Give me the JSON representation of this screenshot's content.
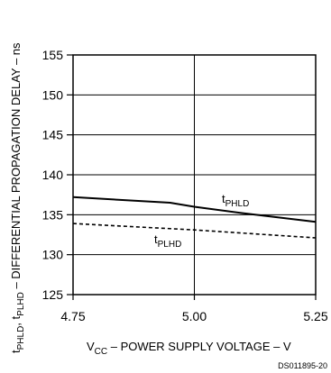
{
  "chart_data": {
    "type": "line",
    "x_ticks": [
      "4.75",
      "5.00",
      "5.25"
    ],
    "y_ticks": [
      "125",
      "130",
      "135",
      "140",
      "145",
      "150",
      "155"
    ],
    "xlim": [
      4.75,
      5.25
    ],
    "ylim": [
      125,
      155
    ],
    "grid": true,
    "xlabel": {
      "pre": "V",
      "sub": "CC",
      "post": " – POWER SUPPLY VOLTAGE – V"
    },
    "ylabel": {
      "p1": "t",
      "s1": "PHLD",
      "p2": ", t",
      "s2": "PLHD",
      "p3": " – DIFFERENTIAL PROPAGATION DELAY – ns"
    },
    "series": [
      {
        "name": "tPHLD",
        "label_main": "t",
        "label_sub": "PHLD",
        "style": "solid",
        "x": [
          4.75,
          4.95,
          5.0,
          5.1,
          5.25
        ],
        "y": [
          137.2,
          136.5,
          136.0,
          135.2,
          134.1
        ]
      },
      {
        "name": "tPLHD",
        "label_main": "t",
        "label_sub": "PLHD",
        "style": "dashed",
        "x": [
          4.75,
          5.0,
          5.25
        ],
        "y": [
          133.9,
          133.1,
          132.1
        ]
      }
    ]
  },
  "source_code": "DS011895-20",
  "colors": {
    "line": "#000000",
    "background": "#ffffff"
  }
}
